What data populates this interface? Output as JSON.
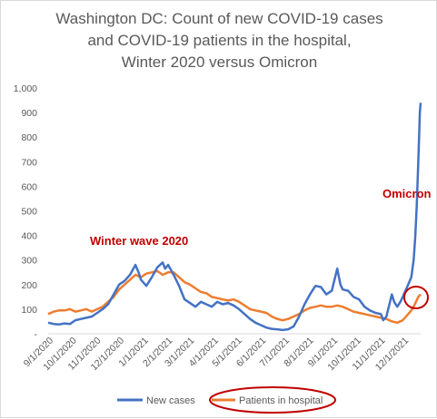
{
  "chart_data": {
    "type": "line",
    "title_lines": [
      "Washington DC:  Count of new COVID-19 cases",
      "and COVID-19 patients in the hospital,",
      "Winter 2020 versus Omicron"
    ],
    "y_ticks": [
      "-",
      "100",
      "200",
      "300",
      "400",
      "500",
      "600",
      "700",
      "800",
      "900",
      "1,000"
    ],
    "x_ticks": [
      "9/1/2020",
      "10/1/2020",
      "11/1/2020",
      "12/1/2020",
      "1/1/2021",
      "2/1/2021",
      "3/1/2021",
      "4/1/2021",
      "5/1/2021",
      "6/1/2021",
      "7/1/2021",
      "8/1/2021",
      "9/1/2021",
      "10/1/2021",
      "11/1/2021",
      "12/1/2021"
    ],
    "ylim": [
      0,
      1000
    ],
    "annotations": [
      "Winter wave 2020",
      "Omicron"
    ],
    "colors": {
      "new_cases": "#4472c4",
      "patients": "#ed7d31",
      "annotation": "#c00000"
    },
    "series": [
      {
        "name": "New cases",
        "points": [
          [
            0,
            45
          ],
          [
            7,
            40
          ],
          [
            14,
            38
          ],
          [
            21,
            42
          ],
          [
            28,
            40
          ],
          [
            35,
            55
          ],
          [
            42,
            60
          ],
          [
            49,
            65
          ],
          [
            56,
            70
          ],
          [
            63,
            85
          ],
          [
            70,
            100
          ],
          [
            77,
            120
          ],
          [
            84,
            160
          ],
          [
            91,
            200
          ],
          [
            98,
            215
          ],
          [
            105,
            240
          ],
          [
            112,
            280
          ],
          [
            116,
            250
          ],
          [
            119,
            220
          ],
          [
            126,
            195
          ],
          [
            133,
            230
          ],
          [
            140,
            270
          ],
          [
            147,
            290
          ],
          [
            150,
            265
          ],
          [
            154,
            280
          ],
          [
            161,
            240
          ],
          [
            168,
            195
          ],
          [
            175,
            140
          ],
          [
            182,
            125
          ],
          [
            189,
            110
          ],
          [
            196,
            130
          ],
          [
            203,
            120
          ],
          [
            210,
            110
          ],
          [
            217,
            130
          ],
          [
            224,
            120
          ],
          [
            231,
            125
          ],
          [
            238,
            115
          ],
          [
            245,
            100
          ],
          [
            252,
            80
          ],
          [
            259,
            60
          ],
          [
            266,
            45
          ],
          [
            273,
            35
          ],
          [
            280,
            25
          ],
          [
            287,
            20
          ],
          [
            294,
            18
          ],
          [
            301,
            15
          ],
          [
            308,
            18
          ],
          [
            315,
            30
          ],
          [
            322,
            70
          ],
          [
            329,
            120
          ],
          [
            336,
            160
          ],
          [
            343,
            195
          ],
          [
            350,
            190
          ],
          [
            357,
            160
          ],
          [
            364,
            175
          ],
          [
            371,
            265
          ],
          [
            375,
            200
          ],
          [
            378,
            180
          ],
          [
            385,
            175
          ],
          [
            392,
            150
          ],
          [
            399,
            140
          ],
          [
            406,
            110
          ],
          [
            413,
            95
          ],
          [
            420,
            85
          ],
          [
            427,
            80
          ],
          [
            430,
            55
          ],
          [
            434,
            70
          ],
          [
            441,
            160
          ],
          [
            444,
            130
          ],
          [
            448,
            110
          ],
          [
            452,
            130
          ],
          [
            455,
            150
          ],
          [
            462,
            200
          ],
          [
            466,
            230
          ],
          [
            469,
            300
          ],
          [
            471,
            390
          ],
          [
            473,
            520
          ],
          [
            475,
            700
          ],
          [
            476,
            800
          ],
          [
            477,
            900
          ],
          [
            478,
            940
          ]
        ]
      },
      {
        "name": "Patients in hospital",
        "points": [
          [
            0,
            80
          ],
          [
            7,
            90
          ],
          [
            14,
            95
          ],
          [
            21,
            95
          ],
          [
            28,
            100
          ],
          [
            35,
            90
          ],
          [
            42,
            95
          ],
          [
            49,
            100
          ],
          [
            56,
            90
          ],
          [
            63,
            100
          ],
          [
            70,
            110
          ],
          [
            77,
            130
          ],
          [
            84,
            150
          ],
          [
            91,
            180
          ],
          [
            98,
            200
          ],
          [
            105,
            220
          ],
          [
            112,
            240
          ],
          [
            119,
            230
          ],
          [
            126,
            245
          ],
          [
            133,
            250
          ],
          [
            140,
            255
          ],
          [
            147,
            240
          ],
          [
            154,
            250
          ],
          [
            161,
            250
          ],
          [
            168,
            230
          ],
          [
            175,
            210
          ],
          [
            182,
            200
          ],
          [
            189,
            185
          ],
          [
            196,
            170
          ],
          [
            203,
            165
          ],
          [
            210,
            150
          ],
          [
            217,
            145
          ],
          [
            224,
            140
          ],
          [
            231,
            135
          ],
          [
            238,
            140
          ],
          [
            245,
            130
          ],
          [
            252,
            115
          ],
          [
            259,
            100
          ],
          [
            266,
            95
          ],
          [
            273,
            90
          ],
          [
            280,
            85
          ],
          [
            287,
            70
          ],
          [
            294,
            60
          ],
          [
            301,
            55
          ],
          [
            308,
            60
          ],
          [
            315,
            70
          ],
          [
            322,
            80
          ],
          [
            329,
            95
          ],
          [
            336,
            105
          ],
          [
            343,
            110
          ],
          [
            350,
            115
          ],
          [
            357,
            110
          ],
          [
            364,
            110
          ],
          [
            371,
            115
          ],
          [
            378,
            110
          ],
          [
            385,
            100
          ],
          [
            392,
            90
          ],
          [
            399,
            85
          ],
          [
            406,
            80
          ],
          [
            413,
            75
          ],
          [
            420,
            70
          ],
          [
            427,
            65
          ],
          [
            434,
            60
          ],
          [
            441,
            50
          ],
          [
            448,
            45
          ],
          [
            455,
            55
          ],
          [
            462,
            80
          ],
          [
            466,
            95
          ],
          [
            469,
            110
          ],
          [
            472,
            130
          ],
          [
            475,
            150
          ],
          [
            478,
            160
          ]
        ]
      }
    ]
  }
}
